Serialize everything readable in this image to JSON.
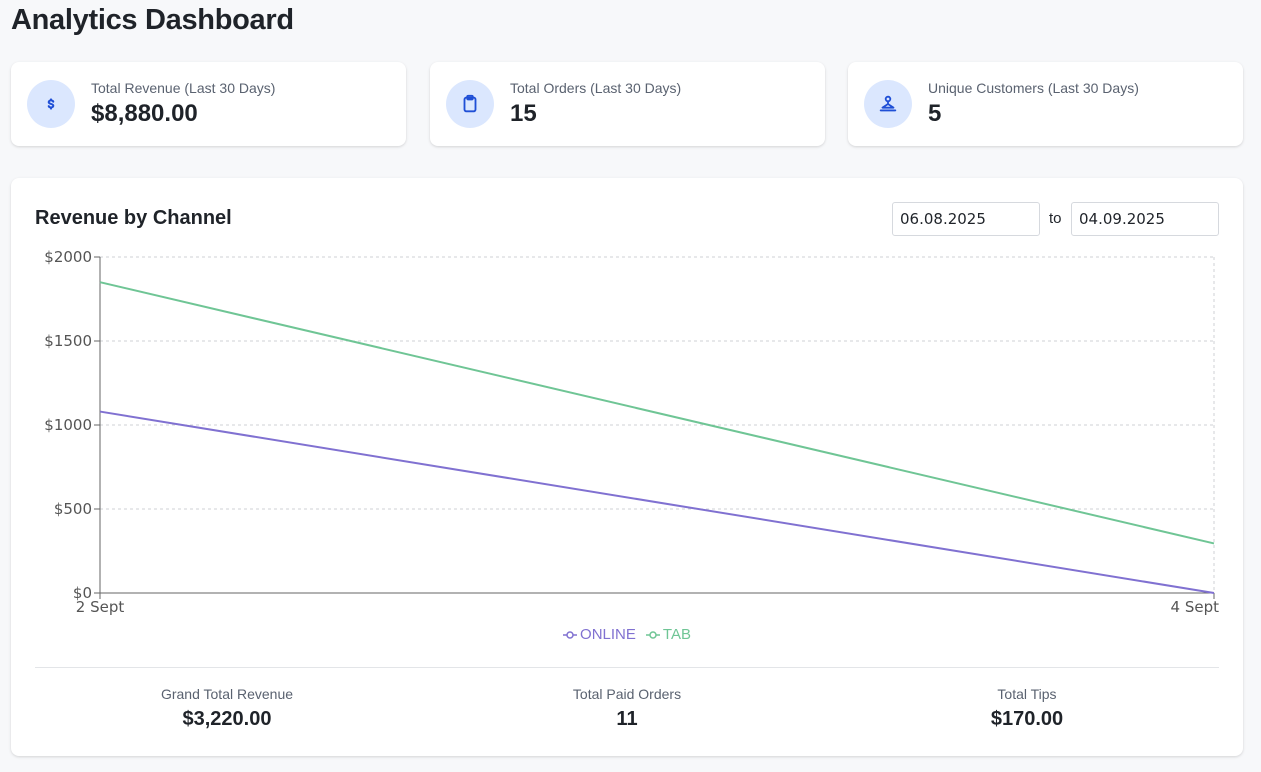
{
  "page": {
    "title": "Analytics Dashboard"
  },
  "stats": [
    {
      "label": "Total Revenue (Last 30 Days)",
      "value": "$8,880.00",
      "icon": "dollar-icon"
    },
    {
      "label": "Total Orders (Last 30 Days)",
      "value": "15",
      "icon": "clipboard-icon"
    },
    {
      "label": "Unique Customers (Last 30 Days)",
      "value": "5",
      "icon": "customer-icon"
    }
  ],
  "chart_section": {
    "title": "Revenue by Channel",
    "date_from": "06.08.2025",
    "date_separator": "to",
    "date_to": "04.09.2025"
  },
  "chart_data": {
    "type": "line",
    "x": [
      "2 Sept",
      "4 Sept"
    ],
    "series": [
      {
        "name": "ONLINE",
        "values": [
          1080,
          0
        ],
        "color": "#8071d1"
      },
      {
        "name": "TAB",
        "values": [
          1850,
          295
        ],
        "color": "#6fc595"
      }
    ],
    "ylim": [
      0,
      2000
    ],
    "yticks": [
      0,
      500,
      1000,
      1500,
      2000
    ],
    "ytick_labels": [
      "$0",
      "$500",
      "$1000",
      "$1500",
      "$2000"
    ],
    "grid": true,
    "legend": "bottom-center"
  },
  "summary": [
    {
      "label": "Grand Total Revenue",
      "value": "$3,220.00"
    },
    {
      "label": "Total Paid Orders",
      "value": "11"
    },
    {
      "label": "Total Tips",
      "value": "$170.00"
    }
  ],
  "colors": {
    "accent_icon": "#1f4fd6",
    "icon_bg": "#dbe7fe",
    "online": "#8071d1",
    "tab": "#6fc595"
  }
}
